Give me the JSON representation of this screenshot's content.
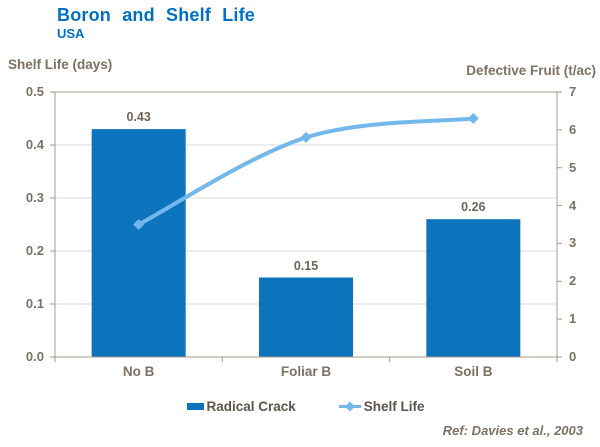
{
  "header": {
    "title": "Boron and Shelf Life",
    "subtitle": "USA"
  },
  "chart_data": {
    "type": "bar+line combo",
    "categories": [
      "No B",
      "Foliar B",
      "Soil B"
    ],
    "series": [
      {
        "name": "Radical Crack",
        "type": "bar",
        "axis": "left",
        "values": [
          0.43,
          0.15,
          0.26
        ],
        "data_labels": [
          "0.43",
          "0.15",
          "0.26"
        ]
      },
      {
        "name": "Shelf Life",
        "type": "line",
        "axis": "right",
        "values": [
          3.5,
          5.8,
          6.3
        ]
      }
    ],
    "left_axis": {
      "title": "Shelf Life (days)",
      "min": 0.0,
      "max": 0.5,
      "tick_step": 0.1,
      "tick_labels": [
        "0.5",
        "0.4",
        "0.3",
        "0.2",
        "0.1",
        "0.0"
      ]
    },
    "right_axis": {
      "title": "Defective Fruit (t/ac)",
      "min": 0,
      "max": 7,
      "tick_step": 1,
      "tick_labels": [
        "7",
        "6",
        "5",
        "4",
        "3",
        "2",
        "1",
        "0"
      ]
    },
    "grid": true,
    "legend_position": "bottom"
  },
  "legend": {
    "bar_label": "Radical Crack",
    "line_label": "Shelf Life"
  },
  "footer": {
    "reference": "Ref: Davies et al., 2003"
  },
  "colors": {
    "title_blue": "#0070c4",
    "bar_blue": "#0b74bc",
    "line_blue": "#72b8ea",
    "axis_text": "#7c7163",
    "data_label": "#6e6456",
    "legend_text": "#5c544b",
    "axis_line": "#a59a8b",
    "grid_line": "#dadada"
  }
}
